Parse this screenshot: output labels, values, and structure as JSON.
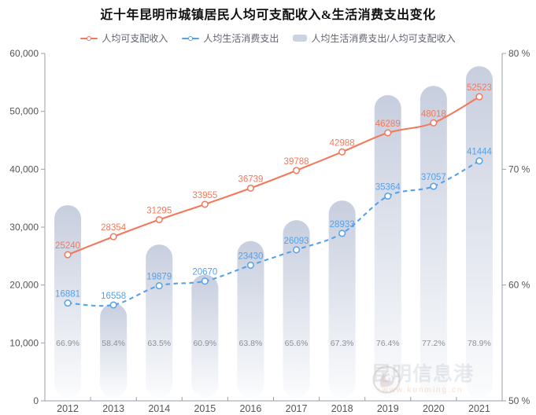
{
  "title": "近十年昆明市城镇居民人均可支配收入&生活消费支出变化",
  "legend": [
    {
      "id": "income",
      "label": "人均可支配收入",
      "marker": "line-circle",
      "color": "#f4795c"
    },
    {
      "id": "expense",
      "label": "人均生活消费支出",
      "marker": "dashed-line-circle",
      "color": "#56a1e8"
    },
    {
      "id": "ratio",
      "label": "人均生活消费支出/人均可支配收入",
      "marker": "round-bar",
      "color": "#ccd3e0"
    }
  ],
  "chart_data": {
    "type": "combo",
    "categories": [
      "2012",
      "2013",
      "2014",
      "2015",
      "2016",
      "2017",
      "2018",
      "2019",
      "2020",
      "2021"
    ],
    "series": [
      {
        "name": "人均可支配收入",
        "type": "line",
        "axis": "left",
        "color": "#f4795c",
        "values": [
          25240,
          28354,
          31295,
          33955,
          36739,
          39788,
          42988,
          46289,
          48018,
          52523
        ]
      },
      {
        "name": "人均生活消费支出",
        "type": "line",
        "line_style": "dashed",
        "axis": "left",
        "color": "#56a1e8",
        "values": [
          16881,
          16558,
          19879,
          20670,
          23430,
          26093,
          28933,
          35364,
          37057,
          41444
        ]
      },
      {
        "name": "人均生活消费支出/人均可支配收入",
        "type": "bar",
        "axis": "right",
        "color_top": "#c7cede",
        "color_bottom": "#fbfcfd",
        "values": [
          66.9,
          58.4,
          63.5,
          60.9,
          63.8,
          65.6,
          67.3,
          76.4,
          77.2,
          78.9
        ],
        "labels": [
          "66.9%",
          "58.4%",
          "63.5%",
          "60.9%",
          "63.8%",
          "65.6%",
          "67.3%",
          "76.4%",
          "77.2%",
          "78.9%"
        ]
      }
    ],
    "left_axis": {
      "min": 0,
      "max": 60000,
      "tick_labels": [
        "0",
        "10,000",
        "20,000",
        "30,000",
        "40,000",
        "50,000",
        "60,000"
      ]
    },
    "right_axis": {
      "min": 50,
      "max": 80,
      "tick_labels": [
        "50 %",
        "60 %",
        "70 %",
        "80 %"
      ]
    },
    "grid": false,
    "legend_position": "top"
  },
  "watermark": {
    "text": "昆明信息港",
    "url": "www.kunming.cn"
  },
  "colors": {
    "axis": "#9aa0a8",
    "tick_label": "#555555",
    "percent_label": "#8b909a",
    "legend_text": "#5f6470",
    "title": "#111111"
  }
}
